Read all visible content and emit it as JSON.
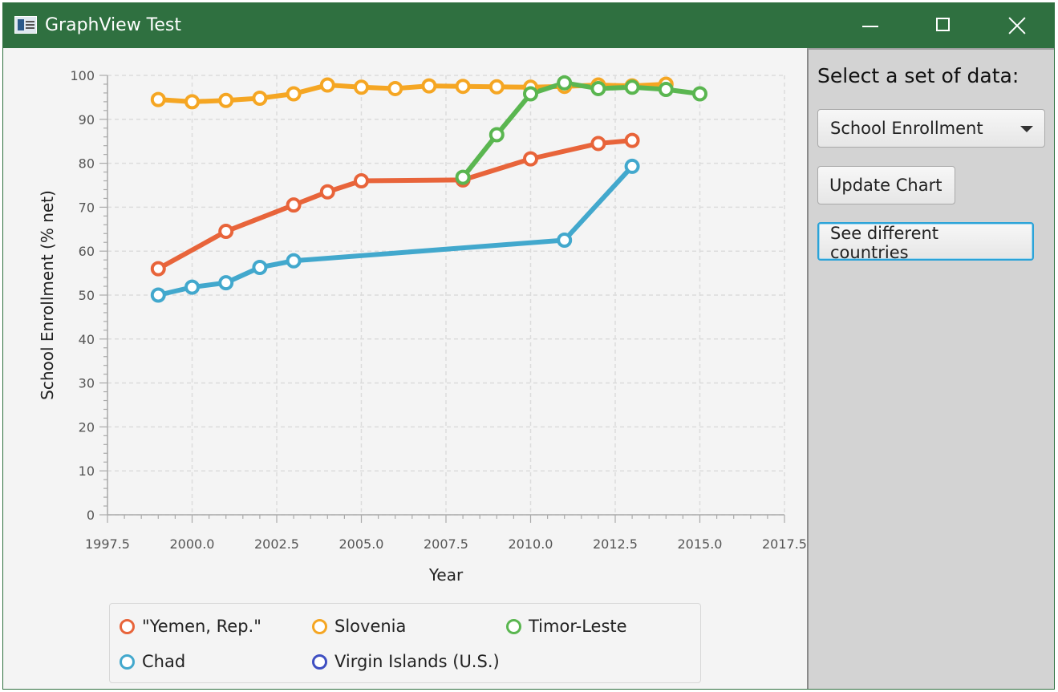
{
  "window": {
    "title": "GraphView Test",
    "icons": {
      "app": "app-window-icon",
      "minimize": "minimize-icon",
      "maximize": "maximize-icon",
      "close": "close-icon"
    }
  },
  "side_panel": {
    "select_label": "Select a set of data:",
    "dropdown_value": "School Enrollment",
    "update_button": "Update Chart",
    "countries_button": "See different countries"
  },
  "chart_data": {
    "type": "line",
    "xlabel": "Year",
    "ylabel": "School Enrollment (% net)",
    "xlim": [
      1997.5,
      2017.5
    ],
    "ylim": [
      0,
      100
    ],
    "x_ticks": [
      "1997.5",
      "2000.0",
      "2002.5",
      "2005.0",
      "2007.5",
      "2010.0",
      "2012.5",
      "2015.0",
      "2017.5"
    ],
    "y_ticks": [
      "0",
      "10",
      "20",
      "30",
      "40",
      "50",
      "60",
      "70",
      "80",
      "90",
      "100"
    ],
    "grid": true,
    "legend_position": "bottom",
    "series": [
      {
        "name": "\"Yemen, Rep.\"",
        "color": "#e8643a",
        "points": [
          [
            1999,
            56
          ],
          [
            2001,
            64.5
          ],
          [
            2003,
            70.5
          ],
          [
            2004,
            73.5
          ],
          [
            2005,
            76
          ],
          [
            2008,
            76.2
          ],
          [
            2010,
            81
          ],
          [
            2012,
            84.5
          ],
          [
            2013,
            85.2
          ]
        ]
      },
      {
        "name": "Slovenia",
        "color": "#f5a623",
        "points": [
          [
            1999,
            94.5
          ],
          [
            2000,
            94
          ],
          [
            2001,
            94.3
          ],
          [
            2002,
            94.8
          ],
          [
            2003,
            95.8
          ],
          [
            2004,
            97.8
          ],
          [
            2005,
            97.3
          ],
          [
            2006,
            97
          ],
          [
            2007,
            97.6
          ],
          [
            2008,
            97.5
          ],
          [
            2009,
            97.4
          ],
          [
            2010,
            97.3
          ],
          [
            2011,
            97.5
          ],
          [
            2012,
            97.8
          ],
          [
            2013,
            97.6
          ],
          [
            2014,
            98
          ]
        ]
      },
      {
        "name": "Timor-Leste",
        "color": "#5ab650",
        "points": [
          [
            2008,
            76.8
          ],
          [
            2009,
            86.5
          ],
          [
            2010,
            95.8
          ],
          [
            2011,
            98.3
          ],
          [
            2012,
            97
          ],
          [
            2013,
            97.3
          ],
          [
            2014,
            96.8
          ],
          [
            2015,
            95.8
          ]
        ]
      },
      {
        "name": "Chad",
        "color": "#42a8cd",
        "points": [
          [
            1999,
            50
          ],
          [
            2000,
            51.8
          ],
          [
            2001,
            52.8
          ],
          [
            2002,
            56.3
          ],
          [
            2003,
            57.8
          ],
          [
            2011,
            62.5
          ],
          [
            2013,
            79.3
          ]
        ]
      },
      {
        "name": "Virgin Islands (U.S.)",
        "color": "#3f4fc2",
        "points": []
      }
    ]
  }
}
